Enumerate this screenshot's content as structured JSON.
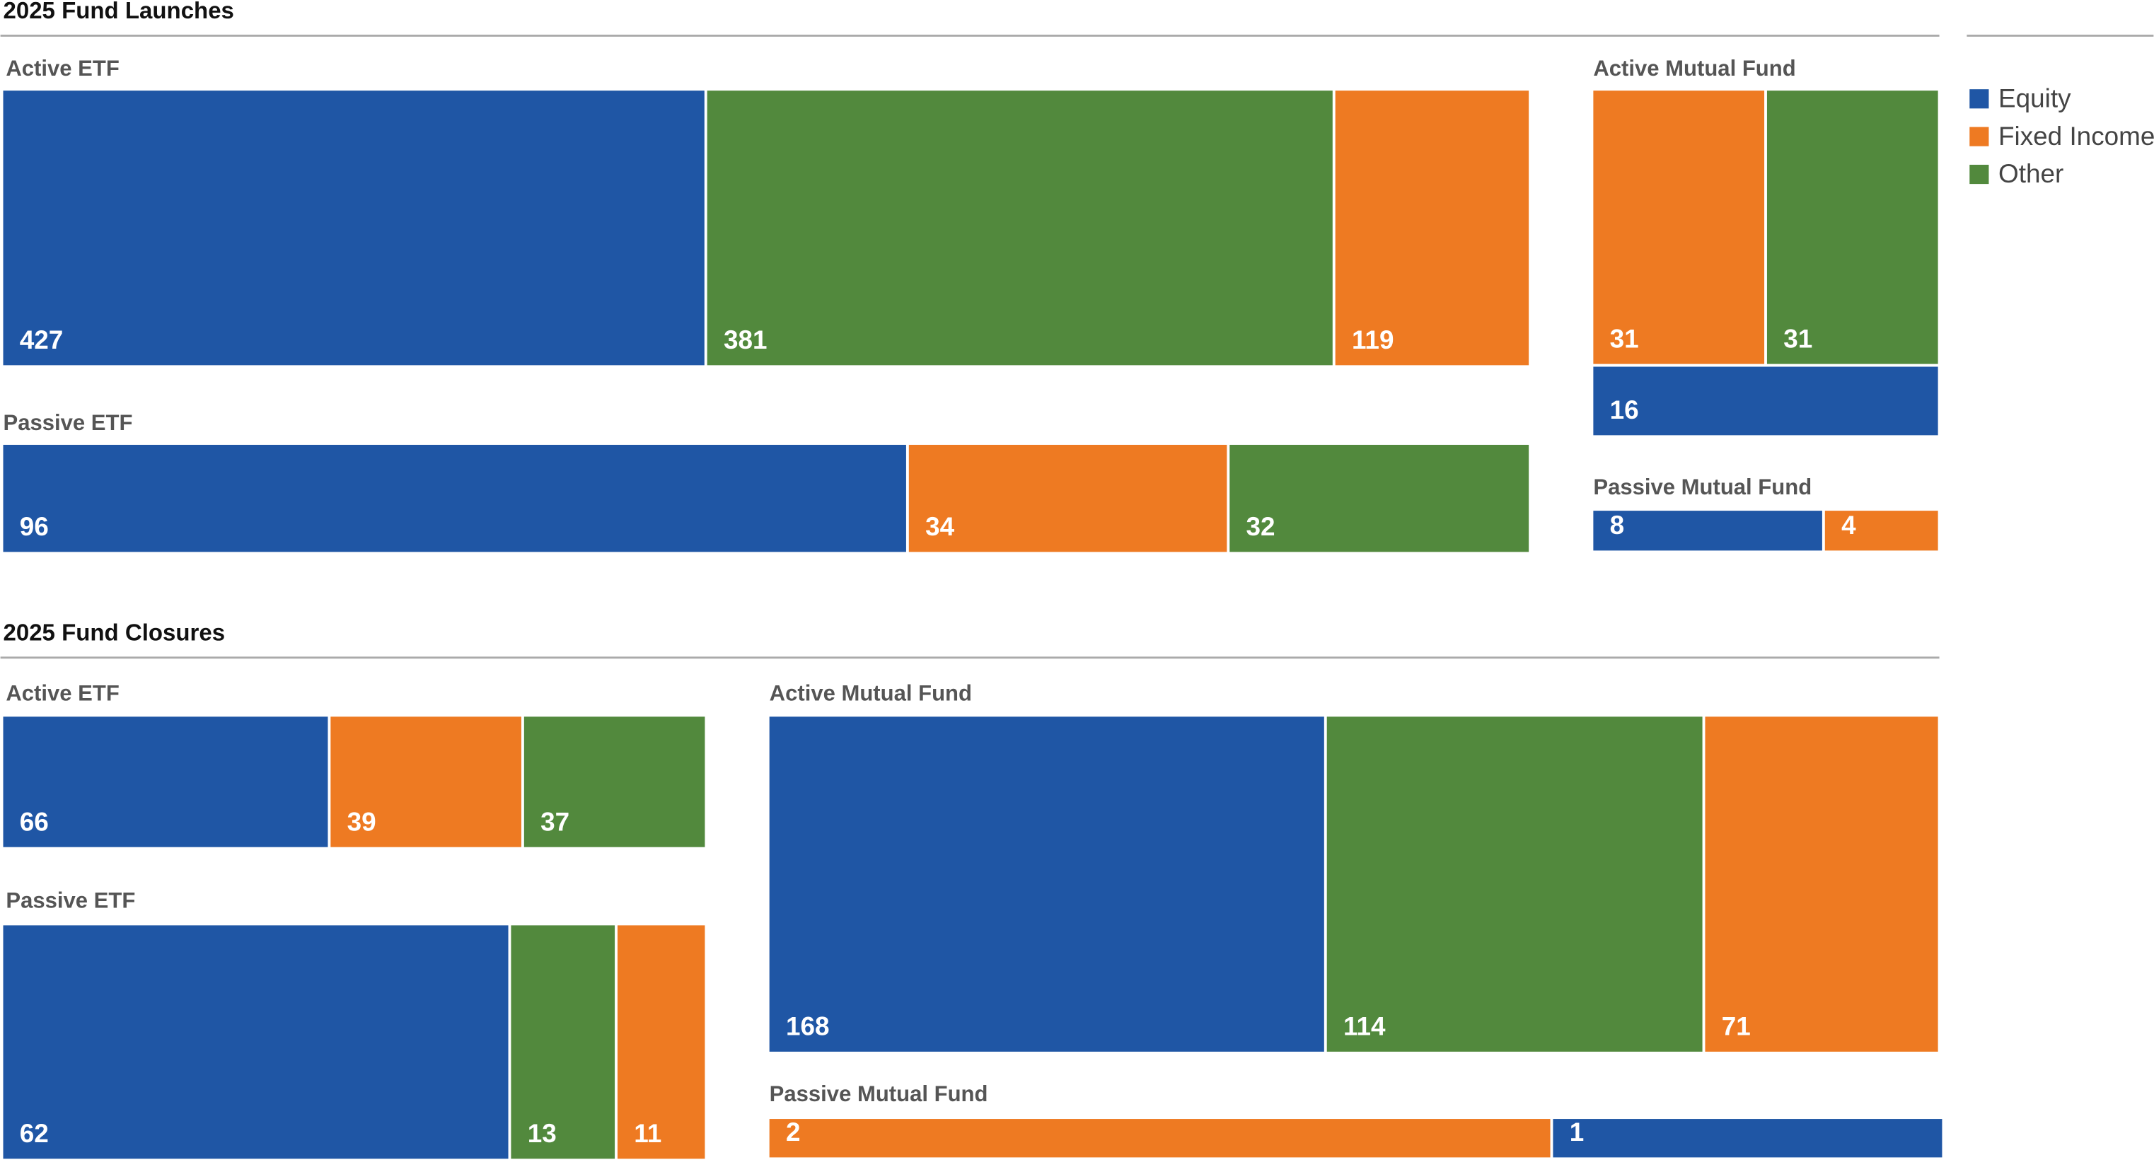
{
  "legend": [
    {
      "name": "Equity",
      "color": "#1f56a5"
    },
    {
      "name": "Fixed Income",
      "color": "#ee7a22"
    },
    {
      "name": "Other",
      "color": "#52893d"
    }
  ],
  "chart_data": [
    {
      "type": "treemap",
      "title": "2025 Fund Launches",
      "groups": [
        {
          "name": "Active ETF",
          "categories": [
            "Equity",
            "Other",
            "Fixed Income"
          ],
          "values": [
            427,
            381,
            119
          ]
        },
        {
          "name": "Passive ETF",
          "categories": [
            "Equity",
            "Fixed Income",
            "Other"
          ],
          "values": [
            96,
            34,
            32
          ]
        },
        {
          "name": "Active Mutual Fund",
          "categories": [
            "Fixed Income",
            "Other",
            "Equity"
          ],
          "values": [
            31,
            31,
            16
          ]
        },
        {
          "name": "Passive Mutual Fund",
          "categories": [
            "Equity",
            "Fixed Income"
          ],
          "values": [
            8,
            4
          ]
        }
      ]
    },
    {
      "type": "treemap",
      "title": "2025 Fund Closures",
      "groups": [
        {
          "name": "Active ETF",
          "categories": [
            "Equity",
            "Fixed Income",
            "Other"
          ],
          "values": [
            66,
            39,
            37
          ]
        },
        {
          "name": "Passive ETF",
          "categories": [
            "Equity",
            "Other",
            "Fixed Income"
          ],
          "values": [
            62,
            13,
            11
          ]
        },
        {
          "name": "Active Mutual Fund",
          "categories": [
            "Equity",
            "Other",
            "Fixed Income"
          ],
          "values": [
            168,
            114,
            71
          ]
        },
        {
          "name": "Passive Mutual Fund",
          "categories": [
            "Fixed Income",
            "Equity"
          ],
          "values": [
            2,
            1
          ]
        }
      ]
    }
  ]
}
